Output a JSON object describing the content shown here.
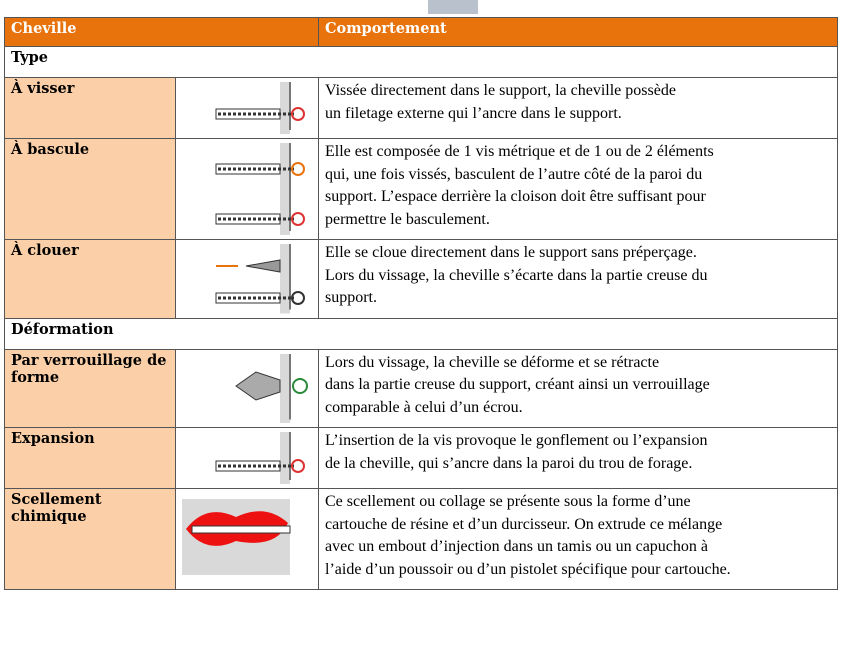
{
  "table": {
    "header": [
      "Cheville",
      "Comportement"
    ],
    "sections": [
      {
        "title": "Type",
        "rows": [
          {
            "name": "À visser",
            "description": [
              "Vissée directement dans le support, la cheville possède",
              "un filetage externe qui l’ancre dans le support."
            ]
          },
          {
            "name": "À bascule",
            "description": [
              "Elle est composée de 1 vis métrique et de 1 ou de 2 éléments",
              "qui, une fois vissés, basculent de l’autre côté de la paroi du",
              "support. L’espace derrière la cloison doit être suffisant pour",
              "permettre le basculement."
            ]
          },
          {
            "name": "À clouer",
            "description": [
              "Elle se cloue directement dans le support sans préperçage.",
              "Lors du vissage, la cheville s’écarte dans la partie creuse du",
              "support."
            ]
          }
        ]
      },
      {
        "title": "Déformation",
        "rows": [
          {
            "name": "Par verrouillage de forme",
            "description": [
              "Lors du vissage, la cheville se déforme et se rétracte",
              "dans la partie creuse du support, créant ainsi un verrouillage",
              "comparable à celui d’un écrou."
            ]
          },
          {
            "name": "Expansion",
            "description": [
              "L’insertion de la vis provoque le gonflement ou l’expansion",
              "de la cheville, qui s’ancre dans la paroi du trou de forage."
            ]
          },
          {
            "name": "Scellement chimique",
            "description": [
              "Ce scellement ou collage se présente sous la forme d’une",
              "cartouche de résine et d’un durcisseur. On extrude ce mélange",
              "avec un embout d’injection dans un tamis ou un capuchon à",
              "l’aide d’un poussoir ou d’un pistolet spécifique pour cartouche."
            ]
          }
        ]
      }
    ]
  }
}
